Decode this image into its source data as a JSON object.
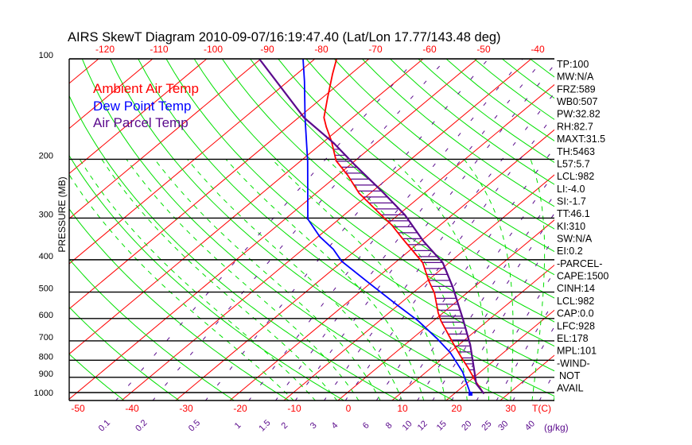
{
  "title": "AIRS SkewT Diagram 2010-09-07/16:19:47.40 (Lat/Lon 17.77/143.48 deg)",
  "colors": {
    "ambient": "#ff0000",
    "dewpoint": "#0000ff",
    "parcel": "#5a0a8c",
    "dry_adiabat": "#00e000",
    "moist_adiabat": "#00e000",
    "mixing_ratio": "#5a0a8c",
    "isotherm": "#ff0000"
  },
  "indices": [
    "TP:100",
    "MW:N/A",
    "FRZ:589",
    "WB0:507",
    "PW:32.82",
    "RH:82.7",
    "MAXT:31.5",
    "TH:5463",
    "L57:5.7",
    "LCL:982",
    "LI:-4.0",
    "SI:-1.7",
    "TT:46.1",
    "KI:310",
    "SW:N/A",
    "EI:0.2",
    "-PARCEL-",
    "CAPE:1500",
    "CINH:14",
    "LCL:982",
    "CAP:0.0",
    "LFC:928",
    "EL:178",
    "MPL:101",
    "-WIND-",
    "NOT",
    "AVAIL"
  ],
  "chart_data": {
    "type": "line",
    "subtype": "skew-t log-p",
    "title": "AIRS SkewT Diagram 2010-09-07/16:19:47.40 (Lat/Lon 17.77/143.48 deg)",
    "xlabel": "T(C)",
    "ylabel": "PRESSURE (MB)",
    "pressure_ticks": [
      "100",
      "200",
      "300",
      "400",
      "500",
      "600",
      "700",
      "800",
      "900",
      "1000"
    ],
    "top_temp_ticks": [
      "-120",
      "-110",
      "-100",
      "-90",
      "-80",
      "-70",
      "-60",
      "-50",
      "-40"
    ],
    "bottom_temp_ticks": [
      "-50",
      "-40",
      "-30",
      "-20",
      "-10",
      "0",
      "10",
      "20",
      "30"
    ],
    "mixing_ratio_ticks": [
      "0.1",
      "0.2",
      "0.5",
      "1",
      "1.5",
      "2",
      "3",
      "4",
      "6",
      "8",
      "10",
      "12",
      "15",
      "20",
      "25",
      "30",
      "40"
    ],
    "mixing_ratio_unit": "(g/kg)",
    "ylim": [
      1050,
      100
    ],
    "legend": [
      {
        "label": "Ambient Air Temp",
        "color": "#ff0000"
      },
      {
        "label": "Dew Point Temp",
        "color": "#0000ff"
      },
      {
        "label": "Air Parcel Temp",
        "color": "#5a0a8c"
      }
    ],
    "legend_position": "top-left",
    "series": [
      {
        "name": "Ambient Air Temp",
        "color": "#ff0000",
        "points": [
          [
            1008,
            25.5
          ],
          [
            931,
            21.5
          ],
          [
            848,
            17.1
          ],
          [
            777,
            12.8
          ],
          [
            707,
            8.3
          ],
          [
            610,
            1.4
          ],
          [
            577,
            -0.9
          ],
          [
            503,
            -6.0
          ],
          [
            463,
            -9.7
          ],
          [
            408,
            -14.9
          ],
          [
            346,
            -23.9
          ],
          [
            315,
            -28.9
          ],
          [
            289,
            -34.1
          ],
          [
            253,
            -42.0
          ],
          [
            223,
            -48.2
          ],
          [
            202,
            -53.5
          ],
          [
            176,
            -58.8
          ],
          [
            160,
            -62.8
          ],
          [
            150,
            -65.3
          ],
          [
            131,
            -69.0
          ],
          [
            111,
            -73.4
          ],
          [
            100,
            -76.0
          ]
        ]
      },
      {
        "name": "Dew Point Temp",
        "color": "#0000ff",
        "points": [
          [
            1008,
            23.0
          ],
          [
            867,
            16.7
          ],
          [
            760,
            10.2
          ],
          [
            688,
            4.5
          ],
          [
            610,
            -2.8
          ],
          [
            546,
            -10.3
          ],
          [
            474,
            -19.7
          ],
          [
            404,
            -30.2
          ],
          [
            372,
            -34.4
          ],
          [
            341,
            -39.7
          ],
          [
            302,
            -45.8
          ],
          [
            203,
            -58.6
          ],
          [
            150,
            -68.8
          ],
          [
            117,
            -76.9
          ],
          [
            100,
            -82.2
          ]
        ]
      },
      {
        "name": "Air Parcel Temp",
        "color": "#5a0a8c",
        "points": [
          [
            1008,
            25.5
          ],
          [
            942,
            21.9
          ],
          [
            848,
            18.1
          ],
          [
            719,
            12.1
          ],
          [
            600,
            4.9
          ],
          [
            482,
            -4.0
          ],
          [
            408,
            -11.2
          ],
          [
            352,
            -19.5
          ],
          [
            294,
            -28.7
          ],
          [
            253,
            -37.4
          ],
          [
            208,
            -49.1
          ],
          [
            179,
            -57.8
          ],
          [
            150,
            -69.0
          ],
          [
            100,
            -90.3
          ]
        ]
      }
    ],
    "cape_shading": {
      "from_p": 928,
      "to_p": 178
    }
  }
}
